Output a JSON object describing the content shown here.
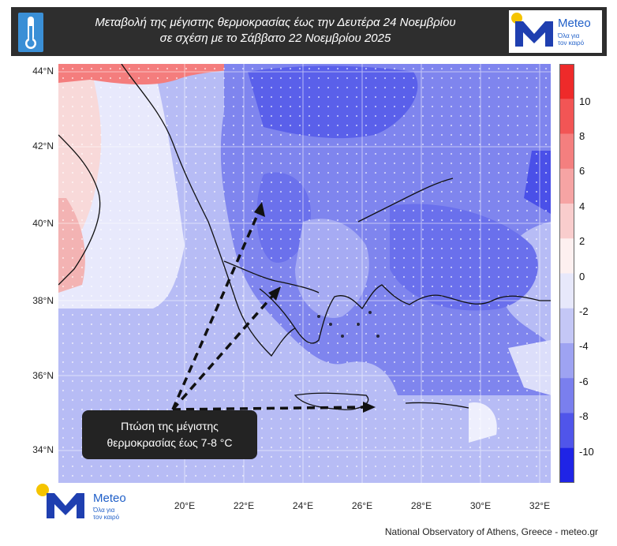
{
  "header": {
    "title_line1": "Μεταβολή της μέγιστης θερμοκρασίας έως την Δευτέρα 24 Νοεμβρίου",
    "title_line2": "σε σχέση με το Σάββατο 22 Νοεμβρίου 2025"
  },
  "logo": {
    "name": "Meteo",
    "tagline_line1": "Όλα για",
    "tagline_line2": "τον καιρό"
  },
  "map": {
    "lat_labels": [
      "44°N",
      "42°N",
      "40°N",
      "38°N",
      "36°N",
      "34°N"
    ],
    "lon_labels": [
      "20°E",
      "22°E",
      "24°E",
      "26°E",
      "28°E",
      "30°E",
      "32°E"
    ],
    "callout_line1": "Πτώση της μέγιστης",
    "callout_line2": "θερμοκρασίας έως 7-8 °C"
  },
  "colorbar": {
    "labels": [
      "10",
      "8",
      "6",
      "4",
      "2",
      "0",
      "-2",
      "-4",
      "-6",
      "-8",
      "-10"
    ],
    "colors": [
      "#ee2a2a",
      "#f25555",
      "#f47f7f",
      "#f6a4a4",
      "#f9cdcd",
      "#fdf0f0",
      "#e7e8fb",
      "#c4c7f6",
      "#9ea3f2",
      "#7a7fee",
      "#5055ea",
      "#1f24e6"
    ]
  },
  "footer": {
    "credit": "National Observatory of Athens, Greece - meteo.gr"
  }
}
